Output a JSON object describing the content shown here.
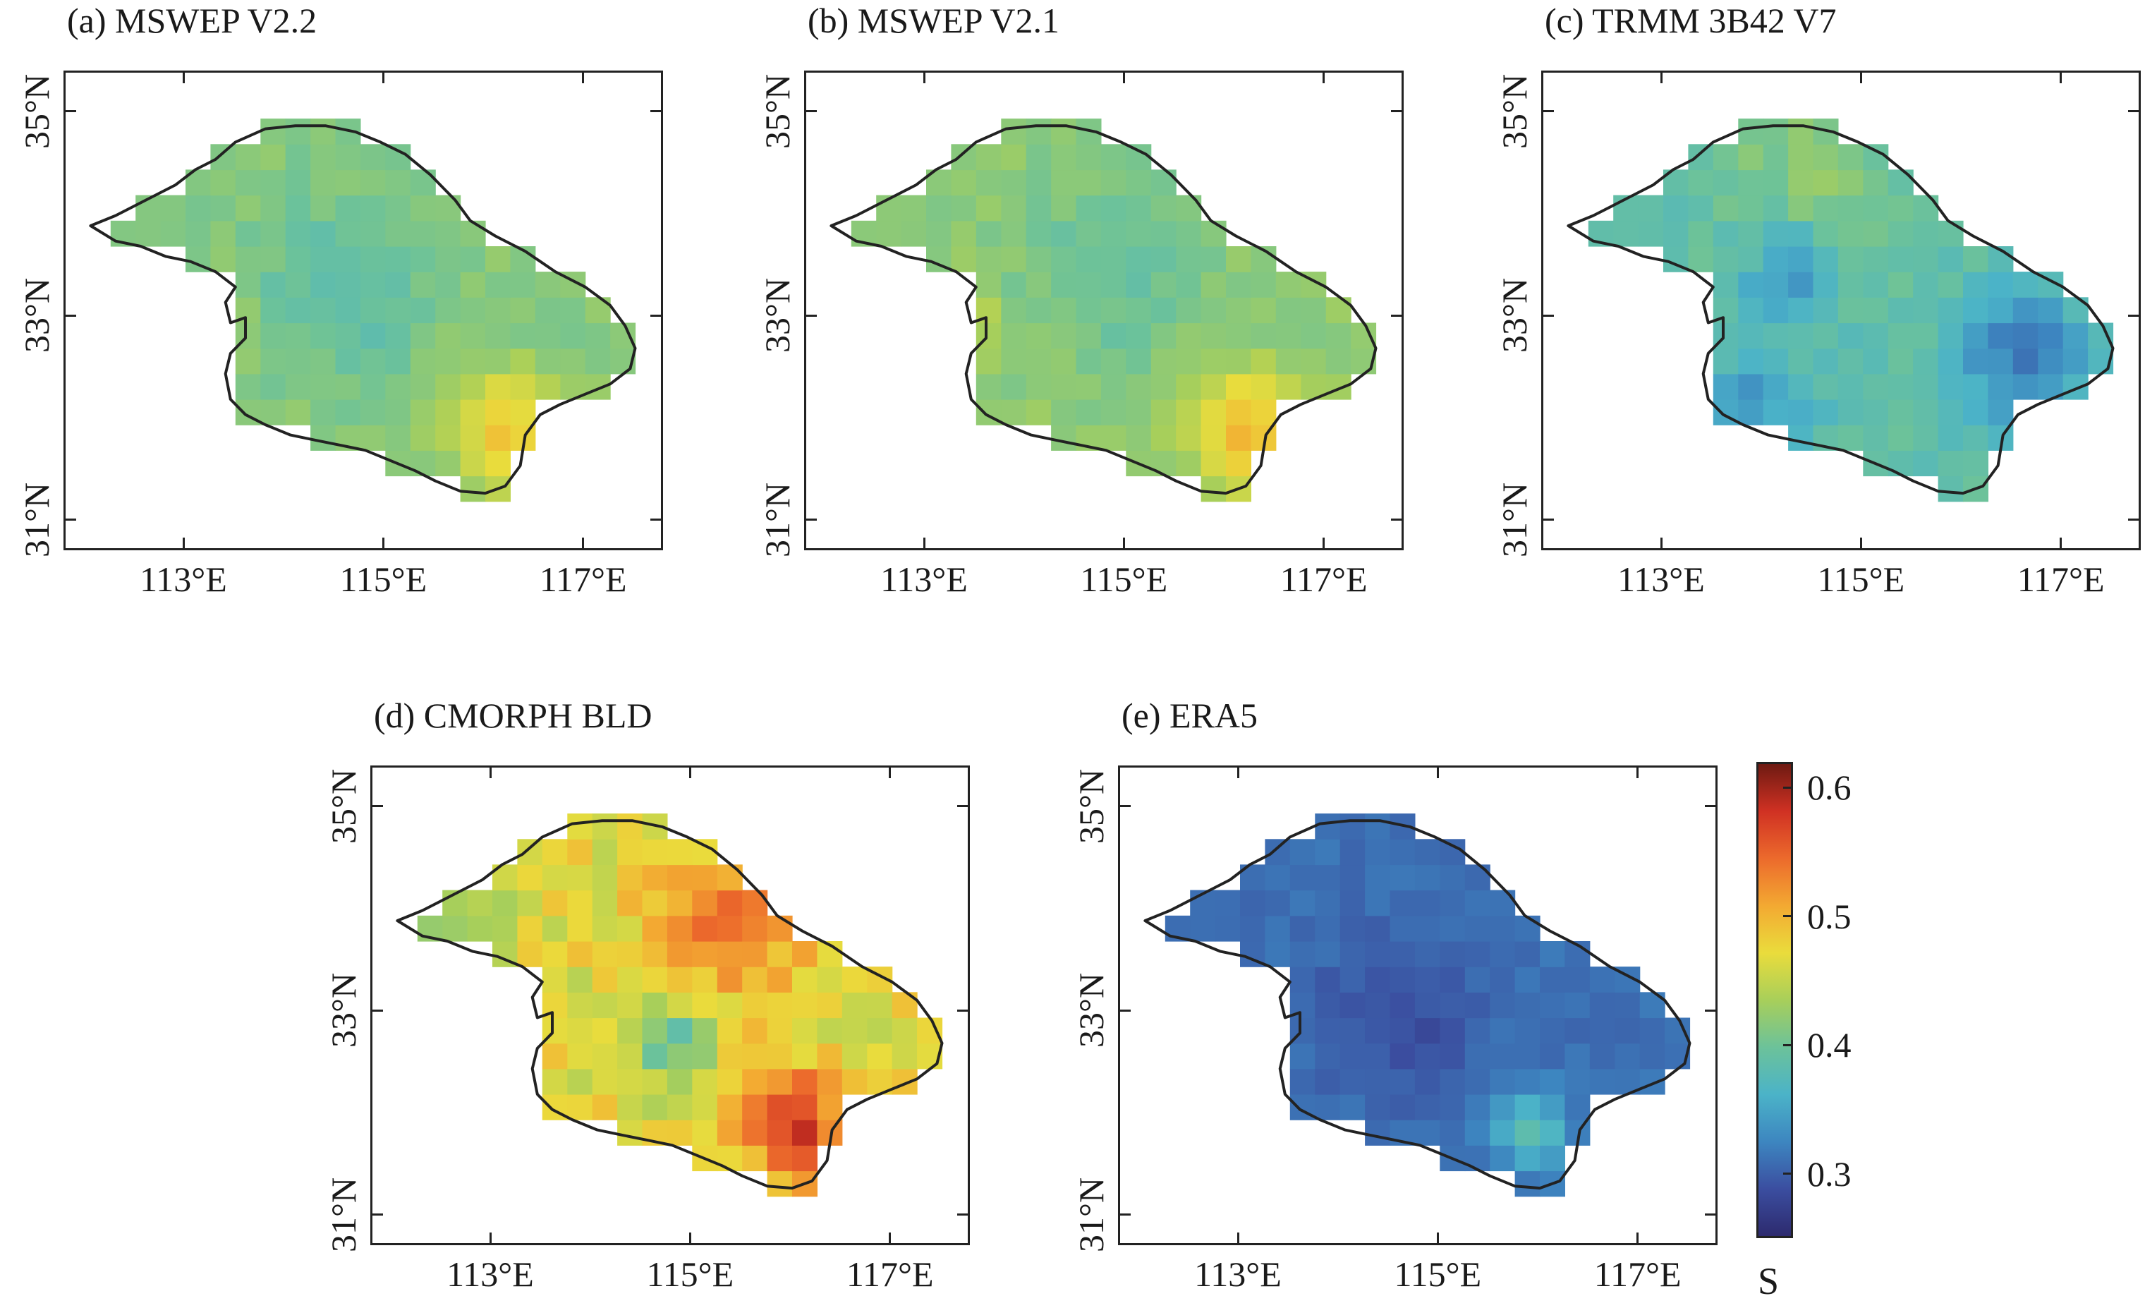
{
  "panels": [
    {
      "id": "a",
      "title": "(a) MSWEP V2.2",
      "x_ticks": [
        "113°E",
        "115°E",
        "117°E"
      ],
      "y_ticks": [
        "35°N",
        "33°N",
        "31°N"
      ],
      "pattern": "mswep22"
    },
    {
      "id": "b",
      "title": "(b) MSWEP V2.1",
      "x_ticks": [
        "113°E",
        "115°E",
        "117°E"
      ],
      "y_ticks": [
        "35°N",
        "33°N",
        "31°N"
      ],
      "pattern": "mswep21"
    },
    {
      "id": "c",
      "title": "(c) TRMM 3B42 V7",
      "x_ticks": [
        "113°E",
        "115°E",
        "117°E"
      ],
      "y_ticks": [
        "35°N",
        "33°N",
        "31°N"
      ],
      "pattern": "trmm"
    },
    {
      "id": "d",
      "title": "(d) CMORPH BLD",
      "x_ticks": [
        "113°E",
        "115°E",
        "117°E"
      ],
      "y_ticks": [
        "35°N",
        "33°N",
        "31°N"
      ],
      "pattern": "cmorph"
    },
    {
      "id": "e",
      "title": "(e) ERA5",
      "x_ticks": [
        "113°E",
        "115°E",
        "117°E"
      ],
      "y_ticks": [
        "35°N",
        "33°N",
        "31°N"
      ],
      "pattern": "era5"
    }
  ],
  "colorbar": {
    "title": "S",
    "min": 0.25,
    "max": 0.62,
    "ticks": [
      "0.6",
      "0.5",
      "0.4",
      "0.3"
    ],
    "colors": [
      "#2d2a6e",
      "#3b4ea0",
      "#3d86c0",
      "#4bb3c8",
      "#6cc29a",
      "#a8cf5a",
      "#eadc3c",
      "#f3a932",
      "#ec6a2c",
      "#d03123",
      "#6e1a12"
    ]
  }
}
